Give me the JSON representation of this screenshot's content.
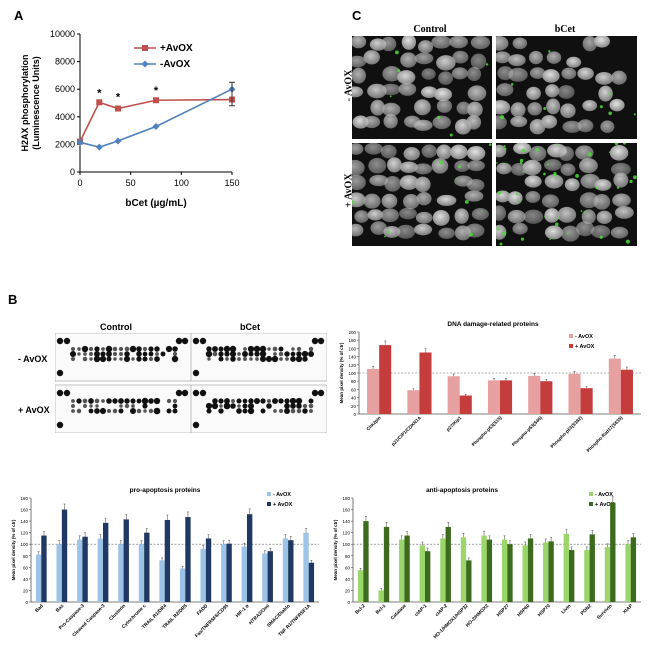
{
  "figure": {
    "panel_letters": {
      "a": "A",
      "b": "B",
      "c": "C"
    },
    "panel_a": {
      "ylabel_line1": "H2AX phosphorylation",
      "ylabel_line2": "(Luminescence Units)",
      "xlabel": "bCet (µg/mL)",
      "legend": [
        "+AvOX",
        "-AvOX"
      ],
      "significance": [
        "*",
        "*",
        "*"
      ]
    },
    "panel_c": {
      "col_titles": [
        "Control",
        "bCet"
      ],
      "row_titles": [
        "- AvOX",
        "+ AvOX"
      ]
    },
    "blot": {
      "col_titles": [
        "Control",
        "bCet"
      ],
      "row_titles": [
        "- AvOX",
        "+ AvOX"
      ]
    },
    "colors": {
      "plus_avox_line": "#c0504d",
      "minus_avox_line": "#4f81bd",
      "dna_minus": "#e6a0a0",
      "dna_plus": "#c43c3c",
      "pro_minus": "#9dc3e6",
      "pro_plus": "#1f3864",
      "anti_minus": "#9bd66a",
      "anti_plus": "#3d6b1e"
    }
  },
  "chart_data": [
    {
      "type": "line",
      "xlabel": "bCet (µg/mL)",
      "ylabel": "H2AX phosphorylation (Luminescence Units)",
      "xlim": [
        0,
        150
      ],
      "ylim": [
        0,
        10000
      ],
      "xticks": [
        0,
        50,
        100,
        150
      ],
      "yticks": [
        0,
        2000,
        4000,
        6000,
        8000,
        10000
      ],
      "legend_position": "top-left",
      "series": [
        {
          "name": "+AvOX",
          "x": [
            0,
            19,
            37.5,
            75,
            150
          ],
          "y": [
            2200,
            5050,
            4600,
            5200,
            5250
          ]
        },
        {
          "name": "-AvOX",
          "x": [
            0,
            19,
            37.5,
            75,
            150
          ],
          "y": [
            2150,
            1800,
            2250,
            3300,
            6000
          ]
        }
      ]
    },
    {
      "type": "bar",
      "title": "DNA damage-related proteins",
      "ylabel": "Mean pixel density (% of ctr)",
      "ylim": [
        0,
        200
      ],
      "yticks": [
        0,
        20,
        40,
        60,
        80,
        100,
        120,
        140,
        160,
        180,
        200
      ],
      "legend_position": "top-right",
      "categories": [
        "Chk2pin",
        "p21/CIP1/CDKN1A",
        "p27/Kip1",
        "Phospho-p53(S15)",
        "Phospho-p53(S46)",
        "Phospho-p53(S392)",
        "Phospho-Rad17(S635)"
      ],
      "series": [
        {
          "name": "- AvOX",
          "values": [
            110,
            58,
            92,
            82,
            93,
            98,
            135
          ]
        },
        {
          "name": "+ AvOX",
          "values": [
            168,
            150,
            45,
            82,
            80,
            63,
            108
          ]
        }
      ]
    },
    {
      "type": "bar",
      "title": "pro-apoptosis  proteins",
      "ylabel": "Mean pixel density (% of ctr)",
      "ylim": [
        0,
        180
      ],
      "yticks": [
        0,
        20,
        40,
        60,
        80,
        100,
        120,
        140,
        160,
        180
      ],
      "legend_position": "top-right",
      "categories": [
        "Bad",
        "Bax",
        "Pro-Caspase-3",
        "Cleaved Caspase-3",
        "Clusterin",
        "Cytochrome c",
        "TRAIL R1/DR4",
        "TRAIL R2/DR5",
        "FADD",
        "Fas/TNFRSF6/CD95",
        "HIF-1 α",
        "HTRA2/Omi",
        "SMAC/Diablo",
        "TNF R1/TNFRSF1A"
      ],
      "series": [
        {
          "name": "- AvOX",
          "values": [
            82,
            100,
            108,
            110,
            100,
            100,
            72,
            58,
            92,
            100,
            96,
            84,
            110,
            120
          ]
        },
        {
          "name": "+ AvOX",
          "values": [
            115,
            160,
            113,
            137,
            143,
            120,
            142,
            147,
            110,
            101,
            152,
            88,
            107,
            68
          ]
        }
      ]
    },
    {
      "type": "bar",
      "title": "anti-apoptosis  proteins",
      "ylabel": "Mean pixel density (% of ctr)",
      "ylim": [
        0,
        180
      ],
      "yticks": [
        0,
        20,
        40,
        60,
        80,
        100,
        120,
        140,
        160,
        180
      ],
      "legend_position": "top-right",
      "categories": [
        "Bcl-2",
        "Bcl-x",
        "Catalase",
        "cIAP-1",
        "cIAP-2",
        "HO-1/HMOX1/HSP32",
        "HO-2/HMOX2",
        "HSP27",
        "HSP60",
        "HSP70",
        "Livin",
        "PON2",
        "Survivin",
        "XIAP"
      ],
      "series": [
        {
          "name": "- AvOX",
          "values": [
            55,
            20,
            108,
            98,
            110,
            112,
            115,
            108,
            98,
            103,
            118,
            90,
            95,
            100
          ]
        },
        {
          "name": "+ AvOX",
          "values": [
            140,
            130,
            115,
            88,
            130,
            72,
            108,
            100,
            110,
            105,
            90,
            117,
            172,
            112
          ]
        }
      ]
    }
  ]
}
